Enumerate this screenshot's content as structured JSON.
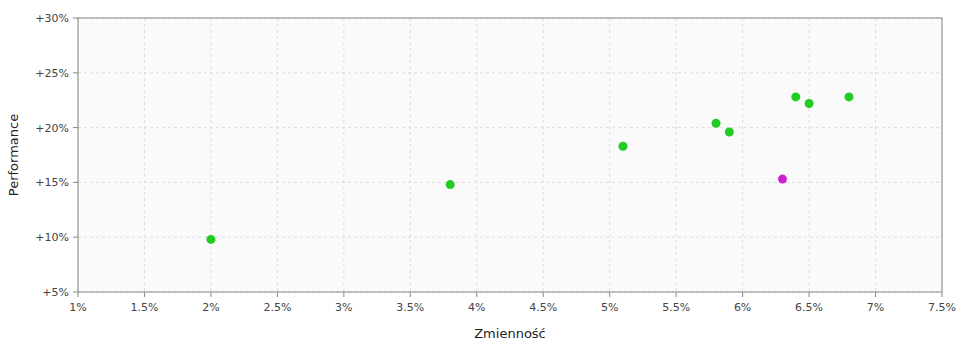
{
  "chart_data": {
    "type": "scatter",
    "xlabel": "Zmienność",
    "ylabel": "Performance",
    "xlim": [
      0.01,
      0.075
    ],
    "ylim": [
      0.05,
      0.3
    ],
    "xticks": [
      {
        "value": 0.01,
        "label": "1%"
      },
      {
        "value": 0.015,
        "label": "1.5%"
      },
      {
        "value": 0.02,
        "label": "2%"
      },
      {
        "value": 0.025,
        "label": "2.5%"
      },
      {
        "value": 0.03,
        "label": "3%"
      },
      {
        "value": 0.035,
        "label": "3.5%"
      },
      {
        "value": 0.04,
        "label": "4%"
      },
      {
        "value": 0.045,
        "label": "4.5%"
      },
      {
        "value": 0.05,
        "label": "5%"
      },
      {
        "value": 0.055,
        "label": "5.5%"
      },
      {
        "value": 0.06,
        "label": "6%"
      },
      {
        "value": 0.065,
        "label": "6.5%"
      },
      {
        "value": 0.07,
        "label": "7%"
      },
      {
        "value": 0.075,
        "label": "7.5%"
      }
    ],
    "yticks": [
      {
        "value": 0.05,
        "label": "+5%"
      },
      {
        "value": 0.1,
        "label": "+10%"
      },
      {
        "value": 0.15,
        "label": "+15%"
      },
      {
        "value": 0.2,
        "label": "+20%"
      },
      {
        "value": 0.25,
        "label": "+25%"
      },
      {
        "value": 0.3,
        "label": "+30%"
      }
    ],
    "grid": true,
    "series": [
      {
        "color": "#22cc22",
        "x": [
          0.02,
          0.038,
          0.051,
          0.058,
          0.059,
          0.064,
          0.065,
          0.068
        ],
        "values": [
          0.098,
          0.148,
          0.183,
          0.204,
          0.196,
          0.228,
          0.222,
          0.228
        ]
      },
      {
        "color": "#cc22cc",
        "x": [
          0.063
        ],
        "values": [
          0.153
        ]
      }
    ]
  }
}
